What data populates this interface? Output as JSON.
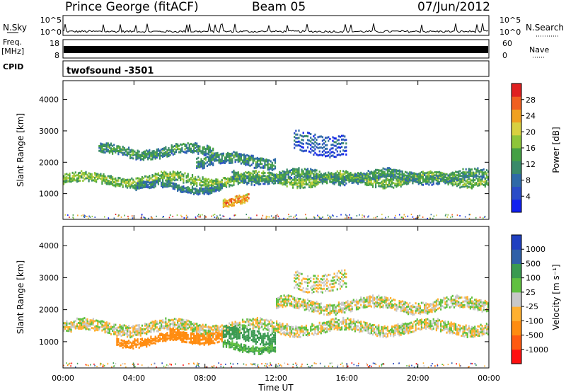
{
  "header": {
    "station": "Prince George (fitACF)",
    "beam": "Beam 05",
    "date": "07/Jun/2012"
  },
  "strips": {
    "nsky_label": "N.Sky",
    "freq_label": "Freq.",
    "freq_unit": "[MHz]",
    "cpid_label": "CPID",
    "nsearch_label": "N.Search",
    "nave_label": "Nave",
    "nsky_ticks": [
      "10^5",
      "10^0"
    ],
    "nsearch_ticks": [
      "10^5",
      "10^0"
    ],
    "freq_ticks": [
      "18",
      "8"
    ],
    "nave_ticks": [
      "60",
      "0"
    ],
    "cpid_text": "twofsound -3501"
  },
  "chart_data": [
    {
      "type": "heatmap",
      "quantity": "Power",
      "ylabel": "Slant Range [km]",
      "xlabel": "",
      "x_ticks": [
        "00:00",
        "04:00",
        "08:00",
        "12:00",
        "16:00",
        "20:00",
        "00:00"
      ],
      "y_ticks": [
        1000,
        2000,
        3000,
        4000
      ],
      "ylim": [
        180,
        4600
      ],
      "xlim_hours": [
        0,
        24
      ],
      "colorbar": {
        "label": "Power [dB]",
        "ticks": [
          4,
          8,
          12,
          16,
          20,
          24,
          28
        ],
        "range": [
          0,
          32
        ],
        "colors": [
          "#1020f0",
          "#2a4cc8",
          "#2f6aa8",
          "#3a8a6a",
          "#45a045",
          "#8ec53a",
          "#d8d040",
          "#f0a020",
          "#f06020",
          "#e02020"
        ]
      },
      "bands": [
        {
          "t0": 0.0,
          "t1": 24.0,
          "center_km": 1500,
          "width_km": 300,
          "dB": 18
        },
        {
          "t0": 4.0,
          "t1": 9.0,
          "center_km": 1250,
          "width_km": 200,
          "dB": 12
        },
        {
          "t0": 7.5,
          "t1": 12.0,
          "center_km": 2100,
          "width_km": 350,
          "dB": 13
        },
        {
          "t0": 9.5,
          "t1": 24.0,
          "center_km": 1600,
          "width_km": 300,
          "dB": 14
        },
        {
          "t0": 13.0,
          "t1": 16.0,
          "center_km": 2700,
          "width_km": 700,
          "dB": 8
        },
        {
          "t0": 2.0,
          "t1": 8.5,
          "center_km": 2400,
          "width_km": 300,
          "dB": 14
        },
        {
          "t0": 9.0,
          "t1": 10.5,
          "center_km": 850,
          "width_km": 250,
          "dB": 26
        }
      ]
    },
    {
      "type": "heatmap",
      "quantity": "Velocity",
      "ylabel": "Slant Range [km]",
      "xlabel": "Time UT",
      "x_ticks": [
        "00:00",
        "04:00",
        "08:00",
        "12:00",
        "16:00",
        "20:00",
        "00:00"
      ],
      "y_ticks": [
        1000,
        2000,
        3000,
        4000
      ],
      "ylim": [
        180,
        4600
      ],
      "xlim_hours": [
        0,
        24
      ],
      "colorbar": {
        "label": "Velocity [m s⁻¹]",
        "tick_labels": [
          "-1000",
          "-500",
          "-100",
          "-25",
          "25",
          "100",
          "500",
          "1000"
        ],
        "colors": [
          "#ff1010",
          "#ff5a10",
          "#ff8c10",
          "#ffb030",
          "#c8c8c8",
          "#60c040",
          "#3a9a50",
          "#3060a8",
          "#2040c0"
        ]
      },
      "bands": [
        {
          "t0": 0.0,
          "t1": 24.0,
          "center_km": 1500,
          "width_km": 350,
          "v": 0
        },
        {
          "t0": 6.0,
          "t1": 9.0,
          "center_km": 1250,
          "width_km": 350,
          "v": -400
        },
        {
          "t0": 9.0,
          "t1": 12.0,
          "center_km": 1250,
          "width_km": 400,
          "v": 400
        },
        {
          "t0": 9.0,
          "t1": 12.0,
          "center_km": 900,
          "width_km": 200,
          "v": 100
        },
        {
          "t0": 12.0,
          "t1": 24.0,
          "center_km": 2200,
          "width_km": 350,
          "v": 0
        },
        {
          "t0": 13.0,
          "t1": 16.0,
          "center_km": 3000,
          "width_km": 600,
          "v": 0
        },
        {
          "t0": 3.0,
          "t1": 7.0,
          "center_km": 1100,
          "width_km": 250,
          "v": -200
        }
      ]
    }
  ]
}
